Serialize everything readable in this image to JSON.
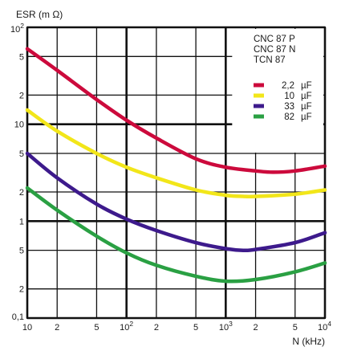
{
  "chart_data": {
    "type": "line",
    "title": "",
    "ylabel": "ESR (m Ω)",
    "xlabel": "N (kHz)",
    "x_scale": "log",
    "y_scale": "log",
    "xlim": [
      10,
      10000
    ],
    "ylim": [
      0.1,
      100
    ],
    "grid": true,
    "x_tick_labels": [
      {
        "v": 10,
        "t": "10"
      },
      {
        "v": 20,
        "t": "2"
      },
      {
        "v": 50,
        "t": "5"
      },
      {
        "v": 100,
        "t": "10²"
      },
      {
        "v": 200,
        "t": "2"
      },
      {
        "v": 500,
        "t": "5"
      },
      {
        "v": 1000,
        "t": "10³"
      },
      {
        "v": 2000,
        "t": "2"
      },
      {
        "v": 5000,
        "t": "5"
      },
      {
        "v": 10000,
        "t": "10⁴"
      }
    ],
    "y_tick_labels": [
      {
        "v": 0.1,
        "t": "0,1"
      },
      {
        "v": 0.2,
        "t": "2"
      },
      {
        "v": 0.5,
        "t": "5"
      },
      {
        "v": 1,
        "t": "1"
      },
      {
        "v": 2,
        "t": "2"
      },
      {
        "v": 5,
        "t": "5"
      },
      {
        "v": 10,
        "t": "10"
      },
      {
        "v": 20,
        "t": "2"
      },
      {
        "v": 50,
        "t": "5"
      },
      {
        "v": 100,
        "t": "10²"
      }
    ],
    "legend_header": [
      "CNC 87 P",
      "CNC 87 N",
      "TCN 87"
    ],
    "legend_placement": "top-right",
    "series": [
      {
        "name": "2,2 µF",
        "color": "#cc0a3c",
        "x": [
          10,
          20,
          50,
          100,
          200,
          500,
          1000,
          2000,
          3000,
          5000,
          10000
        ],
        "y": [
          60,
          36,
          18,
          11,
          7.2,
          4.4,
          3.6,
          3.3,
          3.2,
          3.3,
          3.7
        ]
      },
      {
        "name": "10 µF",
        "color": "#f2e619",
        "x": [
          10,
          20,
          50,
          100,
          200,
          500,
          1000,
          1500,
          2000,
          5000,
          10000
        ],
        "y": [
          14,
          8.5,
          5,
          3.6,
          2.8,
          2.1,
          1.85,
          1.8,
          1.8,
          1.9,
          2.1
        ]
      },
      {
        "name": "33 µF",
        "color": "#3d1a8c",
        "x": [
          10,
          20,
          50,
          100,
          200,
          500,
          1000,
          1500,
          2000,
          5000,
          10000
        ],
        "y": [
          5,
          2.8,
          1.5,
          1.05,
          0.8,
          0.6,
          0.52,
          0.5,
          0.51,
          0.6,
          0.76
        ]
      },
      {
        "name": "82 µF",
        "color": "#2aa043",
        "x": [
          10,
          20,
          50,
          100,
          200,
          500,
          1000,
          2000,
          5000,
          10000
        ],
        "y": [
          2.2,
          1.3,
          0.7,
          0.47,
          0.35,
          0.27,
          0.24,
          0.25,
          0.3,
          0.37
        ]
      }
    ]
  }
}
